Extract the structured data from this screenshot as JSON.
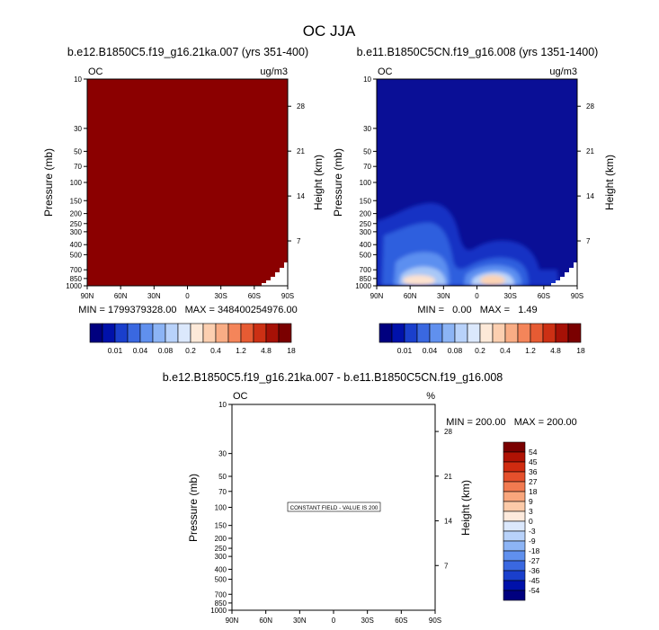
{
  "figure_title": "OC JJA",
  "colors": {
    "dark_red": "#8b0000",
    "blue_fill": "#0a0f96",
    "frame": "#000000"
  },
  "pressure_ticks": [
    "10",
    "30",
    "50",
    "70",
    "100",
    "150",
    "200",
    "250",
    "300",
    "400",
    "500",
    "700",
    "850",
    "1000"
  ],
  "pressure_values": [
    10,
    30,
    50,
    70,
    100,
    150,
    200,
    250,
    300,
    400,
    500,
    700,
    850,
    1000
  ],
  "height_ticks": [
    "28",
    "21",
    "14",
    "7"
  ],
  "height_values": [
    28,
    21,
    14,
    7
  ],
  "lat_ticks": [
    "90N",
    "60N",
    "30N",
    "0",
    "30S",
    "60S",
    "90S"
  ],
  "shared": {
    "ylabel": "Pressure (mb)",
    "y2label": "Height (km)",
    "var": "OC",
    "unit_conc": "ug/m3",
    "unit_pct": "%"
  },
  "colorbar_conc": {
    "labels": [
      "0.01",
      "0.04",
      "0.08",
      "0.2",
      "0.4",
      "1.2",
      "4.8",
      "18"
    ],
    "colors": [
      "#00007f",
      "#0011aa",
      "#1a3fcc",
      "#3a68e0",
      "#6090ee",
      "#8cb4f5",
      "#b8d2fa",
      "#dbe8fc",
      "#fde9d8",
      "#fccfb0",
      "#f9ad85",
      "#f4855a",
      "#e65b33",
      "#cc3014",
      "#a61106",
      "#7a0000"
    ]
  },
  "colorbar_diff": {
    "labels": [
      "54",
      "45",
      "36",
      "27",
      "18",
      "9",
      "3",
      "0",
      "-3",
      "-9",
      "-18",
      "-27",
      "-36",
      "-45",
      "-54"
    ],
    "colors": [
      "#7a0000",
      "#b01204",
      "#d02b10",
      "#e5502c",
      "#f27a50",
      "#f9a67c",
      "#fccaa8",
      "#fdeadc",
      "#dbe8fc",
      "#b8d2fa",
      "#8cb4f5",
      "#6090ee",
      "#3a68e0",
      "#1a3fcc",
      "#0011aa",
      "#00007f"
    ]
  },
  "chart_data": [
    {
      "type": "heatmap",
      "title": "b.e12.B1850C5.f19_g16.21ka.007 (yrs 351-400)",
      "xlabel": "",
      "ylabel": "Pressure (mb)",
      "left_label": "OC",
      "right_label": "ug/m3",
      "stats_text": "MIN = 1799379328.00   MAX = 348400254976.00",
      "min": 1799379328.0,
      "max": 348400254976.0,
      "y_scale": "log",
      "ylim": [
        1000,
        10
      ],
      "fill": "saturated above top color (18) everywhere"
    },
    {
      "type": "heatmap",
      "title": "b.e11.B1850C5CN.f19_g16.008 (yrs 1351-1400)",
      "xlabel": "",
      "ylabel": "Pressure (mb)",
      "left_label": "OC",
      "right_label": "ug/m3",
      "stats_text": "MIN =   0.00   MAX =   1.49",
      "min": 0.0,
      "max": 1.49,
      "y_scale": "log",
      "ylim": [
        1000,
        10
      ],
      "fill": "low values aloft; maxima near surface around 45N and 10S"
    },
    {
      "type": "heatmap",
      "title": "b.e12.B1850C5.f19_g16.21ka.007 - b.e11.B1850C5CN.f19_g16.008",
      "xlabel": "",
      "ylabel": "Pressure (mb)",
      "left_label": "OC",
      "right_label": "%",
      "stats_text": "MIN = 200.00   MAX = 200.00",
      "min": 200.0,
      "max": 200.0,
      "annotation": "CONSTANT FIELD - VALUE IS 200",
      "y_scale": "log",
      "ylim": [
        1000,
        10
      ]
    }
  ]
}
